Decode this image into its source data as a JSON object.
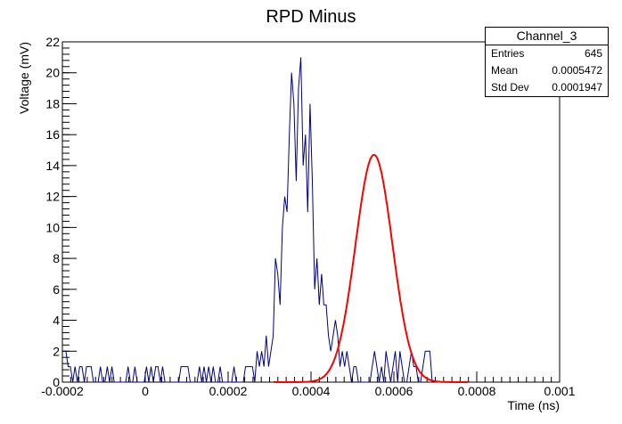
{
  "chart_data": {
    "type": "line",
    "title": "RPD Minus",
    "xlabel": "Time (ns)",
    "ylabel": "Voltage (mV)",
    "xlim": [
      -0.0002,
      0.001
    ],
    "ylim": [
      0,
      22
    ],
    "x_ticks": [
      "-0.0002",
      "0",
      "0.0002",
      "0.0004",
      "0.0006",
      "0.0008",
      "0.001"
    ],
    "x_tick_values": [
      -0.0002,
      0,
      0.0002,
      0.0004,
      0.0006,
      0.0008,
      0.001
    ],
    "y_ticks": [
      "0",
      "2",
      "4",
      "6",
      "8",
      "10",
      "12",
      "14",
      "16",
      "18",
      "20",
      "22"
    ],
    "y_tick_values": [
      0,
      2,
      4,
      6,
      8,
      10,
      12,
      14,
      16,
      18,
      20,
      22
    ],
    "grid": false,
    "series": [
      {
        "kind": "histogram",
        "color": "#000080",
        "x_start": -0.0002,
        "bin_width": 5.56e-06,
        "values": [
          2,
          2,
          1,
          1,
          0,
          1,
          0,
          1,
          1,
          0,
          1,
          1,
          1,
          0,
          0,
          0,
          1,
          0,
          0,
          1,
          0,
          1,
          0,
          0,
          0,
          0,
          0,
          0,
          1,
          0,
          0,
          1,
          0,
          0,
          0,
          0,
          1,
          0,
          1,
          0,
          1,
          1,
          0,
          1,
          0,
          0,
          0,
          0,
          0,
          0,
          0,
          1,
          1,
          1,
          1,
          0,
          0,
          0,
          0,
          1,
          0,
          1,
          0,
          1,
          0,
          1,
          0,
          0,
          1,
          0,
          0,
          0,
          0,
          0,
          1,
          0,
          0,
          0,
          0,
          1,
          1,
          1,
          1,
          0,
          2,
          1,
          2,
          1,
          3,
          1,
          2,
          3,
          8,
          7,
          5,
          10,
          12,
          11,
          16,
          20,
          18,
          13,
          19,
          21,
          14,
          16,
          11,
          18,
          13,
          6,
          8,
          5,
          7,
          5,
          5,
          3,
          2,
          3,
          4,
          3,
          1,
          2,
          1,
          2,
          1,
          0,
          1,
          1,
          0,
          0,
          0,
          0,
          0,
          0,
          1,
          2,
          1,
          0,
          1,
          0,
          2,
          1,
          0,
          1,
          2,
          0,
          2,
          1,
          0,
          0,
          1,
          2,
          1,
          1,
          0,
          0,
          1,
          2,
          2,
          2,
          0
        ]
      },
      {
        "kind": "gaussian-fit",
        "color": "#ff0000",
        "amplitude": 14.7,
        "mean": 0.000552,
        "sigma": 4.45e-05,
        "range": [
          0.00031,
          0.00078
        ]
      }
    ]
  },
  "stats_box": {
    "title": "Channel_3",
    "rows": [
      {
        "label": "Entries",
        "value": "645"
      },
      {
        "label": "Mean",
        "value": "0.0005472"
      },
      {
        "label": "Std Dev",
        "value": "0.0001947"
      }
    ]
  }
}
